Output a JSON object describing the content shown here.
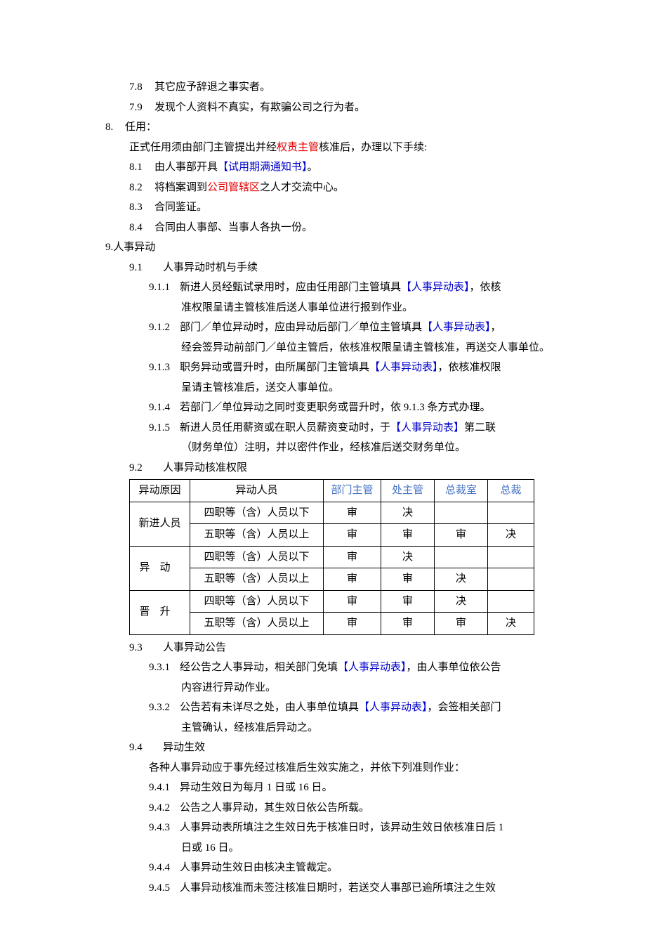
{
  "colors": {
    "red": "#e60000",
    "blue": "#0000cc",
    "blue2": "#4472c4",
    "text": "#000000",
    "bg": "#ffffff",
    "border": "#000000"
  },
  "typography": {
    "body_fontsize": 15,
    "line_height": 1.9,
    "font_family": "SimSun"
  },
  "items": {
    "i78": {
      "num": "7.8",
      "text": "其它应予辞退之事实者。"
    },
    "i79": {
      "num": "7.9",
      "text": "发现个人资料不真实，有欺骗公司之行为者。"
    },
    "i8": {
      "num": "8.",
      "text": "任用："
    },
    "i8intro": {
      "pre": "正式任用须由部门主管提出并经",
      "red": "权责主管",
      "post": "核准后，办理以下手续:"
    },
    "i81": {
      "num": "8.1",
      "pre": "由人事部开具",
      "blue": "【试用期满通知书】",
      "post": "。"
    },
    "i82": {
      "num": "8.2",
      "pre": "将档案调到",
      "red": "公司管辖区",
      "post": "之人才交流中心。"
    },
    "i83": {
      "num": "8.3",
      "text": "合同鉴证。"
    },
    "i84": {
      "num": "8.4",
      "text": "合同由人事部、当事人各执一份。"
    },
    "i9": {
      "text": "9.人事异动"
    },
    "i91": {
      "num": "9.1",
      "text": "人事异动时机与手续"
    },
    "i911": {
      "num": "9.1.1",
      "pre": "新进人员经甄试录用时，应由任用部门主管填具",
      "blue": "【人事异动表】",
      "post1": "，依核",
      "post2": "准权限呈请主管核准后送人事单位进行报到作业。"
    },
    "i912": {
      "num": "9.1.2",
      "pre": "部门／单位异动时，应由异动后部门／单位主管填具",
      "blue": "【人事异动表】",
      "post1": "，",
      "post2": "经会签异动前部门／单位主管后，依核准权限呈请主管核准，再送交人事单位。"
    },
    "i913": {
      "num": "9.1.3",
      "pre": "职务异动或晋升时，由所属部门主管填具",
      "blue": "【人事异动表】",
      "post1": "，依核准权限",
      "post2": "呈请主管核准后，送交人事单位。"
    },
    "i914": {
      "num": "9.1.4",
      "text": "若部门／单位异动之同时变更职务或晋升时，依 9.1.3 条方式办理。"
    },
    "i915": {
      "num": "9.1.5",
      "pre": "新进人员任用薪资或在职人员薪资变动时，于",
      "blue": "【人事异动表】",
      "post1": "第二联",
      "post2": "（财务单位）注明，并以密件作业，经核准后送交财务单位。"
    },
    "i92": {
      "num": "9.2",
      "text": "人事异动核准权限"
    },
    "i93": {
      "num": "9.3",
      "text": "人事异动公告"
    },
    "i931": {
      "num": "9.3.1",
      "pre": "经公告之人事异动，相关部门免填",
      "blue": "【人事异动表】",
      "post1": "，由人事单位依公告",
      "post2": "内容进行异动作业。"
    },
    "i932": {
      "num": "9.3.2",
      "pre": "公告若有未详尽之处，由人事单位填具",
      "blue": "【人事异动表】",
      "post1": "，会签相关部门",
      "post2": "主管确认，经核准后异动之。"
    },
    "i94": {
      "num": "9.4",
      "text": "异动生效"
    },
    "i94intro": "各种人事异动应于事先经过核准后生效实施之，并依下列准则作业：",
    "i941": {
      "num": "9.4.1",
      "text": "异动生效日为每月 1 日或 16 日。"
    },
    "i942": {
      "num": "9.4.2",
      "text": "公告之人事异动，其生效日依公告所载。"
    },
    "i943": {
      "num": "9.4.3",
      "line1": "人事异动表所填注之生效日先于核准日时，该异动生效日依核准日后 1",
      "line2": "日或 16 日。"
    },
    "i944": {
      "num": "9.4.4",
      "text": "人事异动生效日由核决主管裁定。"
    },
    "i945": {
      "num": "9.4.5",
      "text": "人事异动核准而未签注核准日期时，若送交人事部已逾所填注之生效"
    }
  },
  "table": {
    "headers": {
      "c1": "异动原因",
      "c2": "异动人员",
      "c3": "部门主管",
      "c4": "处主管",
      "c5": "总裁室",
      "c6": "总裁"
    },
    "groups": [
      {
        "name": "新进人员",
        "spaced": false,
        "rows": [
          {
            "person": "四职等（含）人员以下",
            "v": [
              "审",
              "决",
              "",
              ""
            ]
          },
          {
            "person": "五职等（含）人员以上",
            "v": [
              "审",
              "审",
              "审",
              "决"
            ]
          }
        ]
      },
      {
        "name": "异动",
        "spaced": true,
        "rows": [
          {
            "person": "四职等（含）人员以下",
            "v": [
              "审",
              "决",
              "",
              ""
            ]
          },
          {
            "person": "五职等（含）人员以上",
            "v": [
              "审",
              "审",
              "决",
              ""
            ]
          }
        ]
      },
      {
        "name": "晋升",
        "spaced": true,
        "rows": [
          {
            "person": "四职等（含）人员以下",
            "v": [
              "审",
              "审",
              "决",
              ""
            ]
          },
          {
            "person": "五职等（含）人员以上",
            "v": [
              "审",
              "审",
              "审",
              "决"
            ]
          }
        ]
      }
    ]
  }
}
